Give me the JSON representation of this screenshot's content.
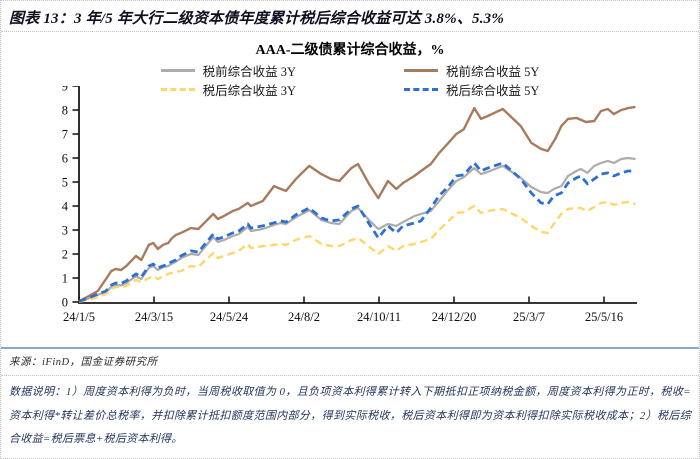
{
  "header": {
    "text": "图表 13：3 年/5 年大行二级资本债年度累计税后综合收益可达 3.8%、5.3%"
  },
  "source": {
    "text": "来源：iFinD，国金证券研究所"
  },
  "notes": {
    "text": "数据说明：1）周度资本利得为负时，当周税收取值为 0，且负项资本利得累计转入下期抵扣正项纳税金额，周度资本利得为正时，税收=资本利得*转让差价总税率，并扣除累计抵扣额度范围内部分，得到实际税收，税后资本利得即为资本利得扣除实际税收成本；2）税后综合收益=税后票息+税后资本利得。"
  },
  "colors": {
    "axis": "#1a1a1a",
    "rule": "#86a9c6",
    "dotted": "#c3c3c3"
  },
  "chart_data": {
    "type": "line",
    "title": "AAA-二级债累计综合收益，%",
    "x_axis": {
      "unit": "weeks-since-start",
      "tick_weeks": [
        0,
        10,
        20,
        30,
        40,
        50,
        60,
        70
      ],
      "tick_labels": [
        "24/1/5",
        "24/3/15",
        "24/5/24",
        "24/8/2",
        "24/10/11",
        "24/12/20",
        "25/3/7",
        "25/5/16"
      ],
      "range": [
        0,
        74.4
      ]
    },
    "y_axis": {
      "ticks": [
        0,
        1,
        2,
        3,
        4,
        5,
        6,
        7,
        8,
        9
      ],
      "range": [
        0,
        9
      ],
      "grid": false
    },
    "legend_position": "top",
    "series": [
      {
        "name": "税前综合收益 3Y",
        "color": "#acacac",
        "dash": "solid",
        "width": 2.2,
        "points": [
          [
            0,
            0.02
          ],
          [
            1.3,
            0.15
          ],
          [
            2.5,
            0.3
          ],
          [
            3.6,
            0.42
          ],
          [
            4.3,
            0.63
          ],
          [
            4.9,
            0.71
          ],
          [
            5.6,
            0.69
          ],
          [
            6.3,
            0.79
          ],
          [
            7.6,
            1.08
          ],
          [
            8.3,
            0.96
          ],
          [
            9.3,
            1.42
          ],
          [
            9.9,
            1.5
          ],
          [
            10.5,
            1.33
          ],
          [
            11.2,
            1.46
          ],
          [
            11.9,
            1.5
          ],
          [
            12.3,
            1.58
          ],
          [
            12.9,
            1.67
          ],
          [
            13.6,
            1.83
          ],
          [
            14.9,
            2.0
          ],
          [
            15.9,
            1.96
          ],
          [
            17.9,
            2.71
          ],
          [
            18.5,
            2.5
          ],
          [
            19.3,
            2.58
          ],
          [
            20.5,
            2.75
          ],
          [
            21.3,
            2.83
          ],
          [
            22.5,
            3.13
          ],
          [
            22.9,
            2.96
          ],
          [
            24.5,
            3.04
          ],
          [
            26,
            3.21
          ],
          [
            26.9,
            3.29
          ],
          [
            27.6,
            3.25
          ],
          [
            29,
            3.55
          ],
          [
            30.7,
            3.83
          ],
          [
            32.3,
            3.42
          ],
          [
            33.6,
            3.29
          ],
          [
            34.7,
            3.25
          ],
          [
            36.3,
            3.79
          ],
          [
            37.2,
            3.92
          ],
          [
            38.7,
            3.4
          ],
          [
            39.9,
            3.04
          ],
          [
            41.2,
            3.25
          ],
          [
            42.3,
            3.17
          ],
          [
            43.2,
            3.33
          ],
          [
            44.7,
            3.58
          ],
          [
            45.6,
            3.67
          ],
          [
            46.9,
            3.79
          ],
          [
            48,
            4.2
          ],
          [
            49.3,
            4.7
          ],
          [
            50.3,
            5.04
          ],
          [
            51.3,
            5.2
          ],
          [
            52.7,
            5.58
          ],
          [
            53.6,
            5.33
          ],
          [
            54.5,
            5.42
          ],
          [
            56.5,
            5.67
          ],
          [
            58.9,
            5.17
          ],
          [
            60.3,
            4.79
          ],
          [
            61.6,
            4.58
          ],
          [
            62.5,
            4.54
          ],
          [
            63.3,
            4.71
          ],
          [
            64.3,
            4.83
          ],
          [
            65.2,
            5.25
          ],
          [
            66.3,
            5.46
          ],
          [
            66.9,
            5.54
          ],
          [
            67.8,
            5.38
          ],
          [
            68.7,
            5.67
          ],
          [
            69.6,
            5.79
          ],
          [
            70.5,
            5.88
          ],
          [
            71.3,
            5.79
          ],
          [
            72.3,
            5.96
          ],
          [
            73.2,
            6.0
          ],
          [
            74.2,
            5.96
          ]
        ]
      },
      {
        "name": "税前综合收益 5Y",
        "color": "#a87b5c",
        "dash": "solid",
        "width": 2.4,
        "points": [
          [
            0,
            0.03
          ],
          [
            1.3,
            0.25
          ],
          [
            2.5,
            0.46
          ],
          [
            3.6,
            0.96
          ],
          [
            4.3,
            1.29
          ],
          [
            4.9,
            1.38
          ],
          [
            5.6,
            1.33
          ],
          [
            6.3,
            1.5
          ],
          [
            7.6,
            1.92
          ],
          [
            8.3,
            1.75
          ],
          [
            9.3,
            2.38
          ],
          [
            9.9,
            2.46
          ],
          [
            10.5,
            2.21
          ],
          [
            11.2,
            2.38
          ],
          [
            11.9,
            2.46
          ],
          [
            12.3,
            2.63
          ],
          [
            12.9,
            2.79
          ],
          [
            13.6,
            2.88
          ],
          [
            14.9,
            3.08
          ],
          [
            15.9,
            3.04
          ],
          [
            17.9,
            3.67
          ],
          [
            18.5,
            3.46
          ],
          [
            19.3,
            3.58
          ],
          [
            20.5,
            3.79
          ],
          [
            21.3,
            3.88
          ],
          [
            22.5,
            4.13
          ],
          [
            22.9,
            4.0
          ],
          [
            24.5,
            4.21
          ],
          [
            26,
            4.83
          ],
          [
            26.9,
            4.71
          ],
          [
            27.6,
            4.63
          ],
          [
            29,
            5.15
          ],
          [
            30.7,
            5.67
          ],
          [
            32.3,
            5.33
          ],
          [
            33.6,
            5.13
          ],
          [
            34.7,
            5.04
          ],
          [
            36.3,
            5.58
          ],
          [
            37.2,
            5.75
          ],
          [
            38.7,
            4.9
          ],
          [
            39.9,
            4.33
          ],
          [
            41.2,
            5.04
          ],
          [
            42.3,
            4.71
          ],
          [
            43.2,
            4.96
          ],
          [
            44.7,
            5.25
          ],
          [
            45.6,
            5.46
          ],
          [
            46.9,
            5.75
          ],
          [
            48,
            6.2
          ],
          [
            49.3,
            6.65
          ],
          [
            50.3,
            7.0
          ],
          [
            51.3,
            7.2
          ],
          [
            52.7,
            8.08
          ],
          [
            53.6,
            7.63
          ],
          [
            54.5,
            7.75
          ],
          [
            55.5,
            7.9
          ],
          [
            56.5,
            8.04
          ],
          [
            58.9,
            7.33
          ],
          [
            60.3,
            6.63
          ],
          [
            61.6,
            6.38
          ],
          [
            62.5,
            6.29
          ],
          [
            63.5,
            6.8
          ],
          [
            64.3,
            7.33
          ],
          [
            65.2,
            7.63
          ],
          [
            66.3,
            7.67
          ],
          [
            67.6,
            7.5
          ],
          [
            68.7,
            7.54
          ],
          [
            69.6,
            7.96
          ],
          [
            70.5,
            8.04
          ],
          [
            71.3,
            7.83
          ],
          [
            72.3,
            8.0
          ],
          [
            73.2,
            8.08
          ],
          [
            74.2,
            8.13
          ]
        ]
      },
      {
        "name": "税后综合收益 3Y",
        "color": "#fdd76a",
        "dash": "dashed",
        "width": 2.4,
        "points": [
          [
            0,
            0.01
          ],
          [
            1.3,
            0.1
          ],
          [
            2.5,
            0.21
          ],
          [
            3.6,
            0.33
          ],
          [
            4.3,
            0.54
          ],
          [
            4.9,
            0.63
          ],
          [
            5.6,
            0.61
          ],
          [
            6.3,
            0.67
          ],
          [
            7.6,
            0.92
          ],
          [
            8.3,
            0.83
          ],
          [
            9.3,
            1.0
          ],
          [
            9.9,
            1.08
          ],
          [
            10.5,
            0.96
          ],
          [
            11.2,
            1.08
          ],
          [
            11.9,
            1.17
          ],
          [
            12.3,
            1.21
          ],
          [
            12.9,
            1.25
          ],
          [
            13.6,
            1.29
          ],
          [
            14.9,
            1.5
          ],
          [
            15.9,
            1.46
          ],
          [
            17.9,
            2.04
          ],
          [
            18.5,
            1.83
          ],
          [
            19.3,
            1.92
          ],
          [
            20.5,
            2.04
          ],
          [
            21.3,
            2.13
          ],
          [
            22.5,
            2.42
          ],
          [
            22.9,
            2.25
          ],
          [
            24.5,
            2.33
          ],
          [
            26,
            2.38
          ],
          [
            26.9,
            2.42
          ],
          [
            27.6,
            2.38
          ],
          [
            29,
            2.6
          ],
          [
            30.7,
            2.75
          ],
          [
            32.3,
            2.42
          ],
          [
            33.6,
            2.33
          ],
          [
            34.7,
            2.33
          ],
          [
            36.3,
            2.58
          ],
          [
            37.2,
            2.67
          ],
          [
            38.7,
            2.3
          ],
          [
            39.9,
            2.0
          ],
          [
            41.2,
            2.33
          ],
          [
            42.3,
            2.13
          ],
          [
            43.2,
            2.33
          ],
          [
            44.7,
            2.42
          ],
          [
            45.6,
            2.5
          ],
          [
            46.9,
            2.63
          ],
          [
            48,
            3.0
          ],
          [
            49.3,
            3.38
          ],
          [
            50.3,
            3.71
          ],
          [
            51.3,
            3.75
          ],
          [
            52.7,
            4.0
          ],
          [
            53.6,
            3.71
          ],
          [
            54.5,
            3.79
          ],
          [
            56.5,
            3.88
          ],
          [
            58.9,
            3.5
          ],
          [
            60.3,
            3.17
          ],
          [
            61.6,
            2.92
          ],
          [
            62.5,
            2.88
          ],
          [
            63.3,
            3.25
          ],
          [
            64.3,
            3.67
          ],
          [
            65.2,
            3.88
          ],
          [
            66.3,
            3.92
          ],
          [
            66.9,
            3.92
          ],
          [
            67.8,
            3.79
          ],
          [
            68.7,
            3.96
          ],
          [
            69.6,
            4.13
          ],
          [
            70.5,
            4.17
          ],
          [
            71.3,
            4.04
          ],
          [
            72.3,
            4.13
          ],
          [
            73.2,
            4.17
          ],
          [
            74.2,
            4.08
          ]
        ]
      },
      {
        "name": "税后综合收益 5Y",
        "color": "#2e6fd2",
        "dash": "dashed",
        "width": 2.8,
        "points": [
          [
            0,
            0.03
          ],
          [
            1.3,
            0.17
          ],
          [
            2.5,
            0.33
          ],
          [
            3.6,
            0.46
          ],
          [
            4.3,
            0.71
          ],
          [
            4.9,
            0.79
          ],
          [
            5.6,
            0.77
          ],
          [
            6.3,
            0.88
          ],
          [
            7.6,
            1.17
          ],
          [
            8.3,
            1.04
          ],
          [
            9.3,
            1.5
          ],
          [
            9.9,
            1.58
          ],
          [
            10.5,
            1.42
          ],
          [
            11.2,
            1.5
          ],
          [
            11.9,
            1.58
          ],
          [
            12.3,
            1.67
          ],
          [
            12.9,
            1.75
          ],
          [
            13.6,
            1.92
          ],
          [
            14.9,
            2.13
          ],
          [
            15.9,
            2.08
          ],
          [
            17.9,
            2.83
          ],
          [
            18.5,
            2.63
          ],
          [
            19.3,
            2.71
          ],
          [
            20.5,
            2.88
          ],
          [
            21.3,
            2.96
          ],
          [
            22.5,
            3.25
          ],
          [
            22.9,
            3.08
          ],
          [
            24.5,
            3.17
          ],
          [
            26,
            3.3
          ],
          [
            26.9,
            3.38
          ],
          [
            27.6,
            3.33
          ],
          [
            29,
            3.65
          ],
          [
            30.7,
            3.92
          ],
          [
            32.3,
            3.5
          ],
          [
            33.6,
            3.38
          ],
          [
            34.7,
            3.42
          ],
          [
            36.3,
            3.88
          ],
          [
            37.2,
            4.0
          ],
          [
            38.7,
            3.25
          ],
          [
            39.9,
            2.67
          ],
          [
            41.2,
            3.17
          ],
          [
            42.3,
            2.88
          ],
          [
            43.2,
            3.17
          ],
          [
            44.7,
            3.29
          ],
          [
            45.6,
            3.38
          ],
          [
            46.9,
            3.92
          ],
          [
            48,
            4.42
          ],
          [
            49.3,
            4.83
          ],
          [
            50.3,
            5.25
          ],
          [
            51.3,
            5.3
          ],
          [
            52.7,
            5.79
          ],
          [
            53.6,
            5.46
          ],
          [
            54.5,
            5.58
          ],
          [
            56.5,
            5.79
          ],
          [
            58.9,
            5.13
          ],
          [
            60.3,
            4.54
          ],
          [
            61.6,
            4.13
          ],
          [
            62.5,
            4.08
          ],
          [
            63.3,
            4.42
          ],
          [
            64.3,
            4.54
          ],
          [
            65.2,
            4.96
          ],
          [
            66.3,
            5.17
          ],
          [
            66.9,
            5.25
          ],
          [
            67.8,
            4.92
          ],
          [
            68.7,
            5.13
          ],
          [
            69.6,
            5.33
          ],
          [
            70.5,
            5.38
          ],
          [
            71.3,
            5.25
          ],
          [
            72.3,
            5.38
          ],
          [
            73.2,
            5.46
          ],
          [
            74.2,
            5.46
          ]
        ]
      }
    ]
  }
}
